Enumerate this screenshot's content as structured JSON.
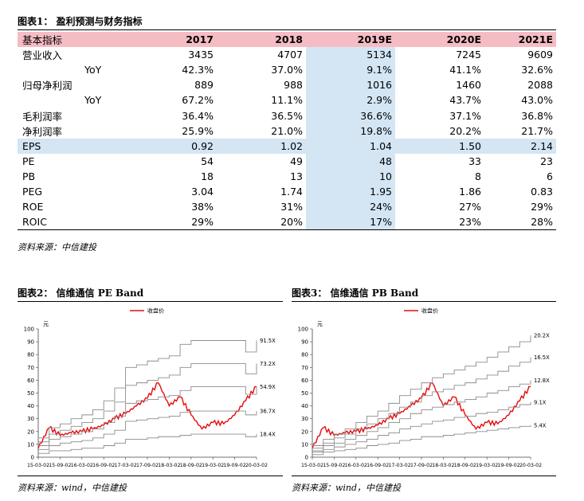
{
  "fig1": {
    "title": "图表1： 盈利预测与财务指标",
    "columns": [
      "基本指标",
      "2017",
      "2018",
      "2019E",
      "2020E",
      "2021E"
    ],
    "rows": [
      {
        "label": "营业收入",
        "values": [
          "3435",
          "4707",
          "5134",
          "7245",
          "9609"
        ]
      },
      {
        "label": "YoY",
        "values": [
          "42.3%",
          "37.0%",
          "9.1%",
          "41.1%",
          "32.6%"
        ]
      },
      {
        "label": "归母净利润",
        "values": [
          "889",
          "988",
          "1016",
          "1460",
          "2088"
        ]
      },
      {
        "label": "YoY",
        "values": [
          "67.2%",
          "11.1%",
          "2.9%",
          "43.7%",
          "43.0%"
        ]
      },
      {
        "label": "毛利润率",
        "values": [
          "36.4%",
          "36.5%",
          "36.6%",
          "37.1%",
          "36.8%"
        ]
      },
      {
        "label": "净利润率",
        "values": [
          "25.9%",
          "21.0%",
          "19.8%",
          "20.2%",
          "21.7%"
        ]
      },
      {
        "label": "EPS",
        "values": [
          "0.92",
          "1.02",
          "1.04",
          "1.50",
          "2.14"
        ]
      },
      {
        "label": "PE",
        "values": [
          "54",
          "49",
          "48",
          "33",
          "23"
        ]
      },
      {
        "label": "PB",
        "values": [
          "18",
          "13",
          "10",
          "8",
          "6"
        ]
      },
      {
        "label": "PEG",
        "values": [
          "3.04",
          "1.74",
          "1.95",
          "1.86",
          "0.83"
        ]
      },
      {
        "label": "ROE",
        "values": [
          "38%",
          "31%",
          "24%",
          "27%",
          "29%"
        ]
      },
      {
        "label": "ROIC",
        "values": [
          "29%",
          "20%",
          "17%",
          "23%",
          "28%"
        ]
      }
    ],
    "source": "资料来源：中信建投"
  },
  "fig2": {
    "title": "图表2： 信维通信 PE Band",
    "source": "资料来源：wind，中信建投"
  },
  "fig3": {
    "title": "图表3： 信维通信 PB Band",
    "source": "资料来源：wind，中信建投"
  },
  "colors": {
    "header_row": "#f6bcc3",
    "highlight": "#d4e5f3",
    "price_line": "#e8090b",
    "band_line": "#8c8c8c"
  },
  "chart_data": [
    {
      "type": "line",
      "title": "",
      "ylabel": "元",
      "ylim": [
        0,
        100
      ],
      "yticks": [
        0,
        10,
        20,
        30,
        40,
        50,
        60,
        70,
        80,
        90,
        100
      ],
      "x_ticks": [
        "15-03-02",
        "15-09-02",
        "16-03-02",
        "16-09-02",
        "17-03-02",
        "17-09-02",
        "18-03-02",
        "18-09-02",
        "19-03-02",
        "19-09-02",
        "20-03-02"
      ],
      "legend": "收盘价",
      "legend_position": "top-center",
      "band_labels": [
        "91.5X",
        "73.2X",
        "54.9X",
        "36.7X",
        "18.4X"
      ],
      "x": [
        "15-03-02",
        "15-06-02",
        "15-09-02",
        "15-12-02",
        "16-03-02",
        "16-06-02",
        "16-09-02",
        "16-12-02",
        "17-03-02",
        "17-06-02",
        "17-09-02",
        "17-12-02",
        "18-03-02",
        "18-06-02",
        "18-09-02",
        "18-12-02",
        "19-03-02",
        "19-06-02",
        "19-09-02",
        "19-12-02",
        "20-03-02"
      ],
      "series": [
        {
          "name": "收盘价",
          "values": [
            7,
            23,
            17,
            19,
            20,
            22,
            25,
            30,
            34,
            40,
            46,
            58,
            40,
            47,
            33,
            22,
            27,
            26,
            33,
            44,
            55
          ]
        },
        {
          "name": "91.5X",
          "values": [
            15,
            23,
            26,
            30,
            33,
            37,
            44,
            54,
            70,
            72,
            75,
            77,
            79,
            88,
            91,
            91,
            91,
            91,
            91,
            82,
            91
          ]
        },
        {
          "name": "73.2X",
          "values": [
            12,
            18,
            21,
            24,
            27,
            30,
            36,
            43,
            56,
            58,
            60,
            62,
            64,
            70,
            73,
            73,
            73,
            73,
            73,
            65,
            73
          ]
        },
        {
          "name": "54.9X",
          "values": [
            9,
            14,
            16,
            18,
            20,
            22,
            27,
            32,
            42,
            44,
            45,
            47,
            48,
            52,
            55,
            55,
            55,
            55,
            55,
            49,
            55
          ]
        },
        {
          "name": "36.7X",
          "values": [
            6,
            9,
            11,
            12,
            13,
            15,
            18,
            21,
            28,
            29,
            30,
            31,
            32,
            35,
            36,
            36,
            36,
            36,
            36,
            33,
            36
          ]
        },
        {
          "name": "18.4X",
          "values": [
            3,
            5,
            5,
            6,
            7,
            7,
            9,
            11,
            14,
            14,
            15,
            16,
            16,
            17,
            18,
            18,
            18,
            18,
            18,
            16,
            18
          ]
        }
      ]
    },
    {
      "type": "line",
      "title": "",
      "ylabel": "元",
      "ylim": [
        0,
        100
      ],
      "yticks": [
        0,
        10,
        20,
        30,
        40,
        50,
        60,
        70,
        80,
        90,
        100
      ],
      "x_ticks": [
        "15-03-02",
        "15-09-02",
        "16-03-02",
        "16-09-02",
        "17-03-02",
        "17-09-02",
        "18-03-02",
        "18-09-02",
        "19-03-02",
        "19-09-02",
        "20-03-02"
      ],
      "legend": "收盘价",
      "legend_position": "top-center",
      "band_labels": [
        "20.2X",
        "16.5X",
        "12.8X",
        "9.1X",
        "5.4X"
      ],
      "x": [
        "15-03-02",
        "15-06-02",
        "15-09-02",
        "15-12-02",
        "16-03-02",
        "16-06-02",
        "16-09-02",
        "16-12-02",
        "17-03-02",
        "17-06-02",
        "17-09-02",
        "17-12-02",
        "18-03-02",
        "18-06-02",
        "18-09-02",
        "18-12-02",
        "19-03-02",
        "19-06-02",
        "19-09-02",
        "19-12-02",
        "20-03-02"
      ],
      "series": [
        {
          "name": "收盘价",
          "values": [
            7,
            23,
            17,
            19,
            20,
            22,
            25,
            30,
            34,
            40,
            46,
            58,
            40,
            47,
            33,
            22,
            27,
            26,
            33,
            44,
            55
          ]
        },
        {
          "name": "20.2X",
          "values": [
            9,
            14,
            18,
            22,
            27,
            32,
            36,
            42,
            48,
            53,
            58,
            62,
            65,
            68,
            71,
            74,
            78,
            82,
            86,
            90,
            95
          ]
        },
        {
          "name": "16.5X",
          "values": [
            7,
            11,
            15,
            18,
            22,
            26,
            30,
            34,
            39,
            43,
            48,
            51,
            53,
            56,
            58,
            61,
            64,
            67,
            71,
            74,
            78
          ]
        },
        {
          "name": "12.8X",
          "values": [
            5,
            9,
            11,
            14,
            17,
            20,
            23,
            27,
            30,
            34,
            37,
            39,
            41,
            43,
            45,
            47,
            50,
            52,
            55,
            57,
            60
          ]
        },
        {
          "name": "9.1X",
          "values": [
            4,
            6,
            8,
            10,
            12,
            14,
            17,
            19,
            22,
            24,
            26,
            28,
            29,
            31,
            32,
            34,
            35,
            37,
            39,
            41,
            43
          ]
        },
        {
          "name": "5.4X",
          "values": [
            2,
            4,
            5,
            6,
            7,
            9,
            10,
            11,
            13,
            14,
            16,
            16,
            17,
            18,
            19,
            20,
            21,
            22,
            23,
            24,
            25
          ]
        }
      ]
    }
  ]
}
